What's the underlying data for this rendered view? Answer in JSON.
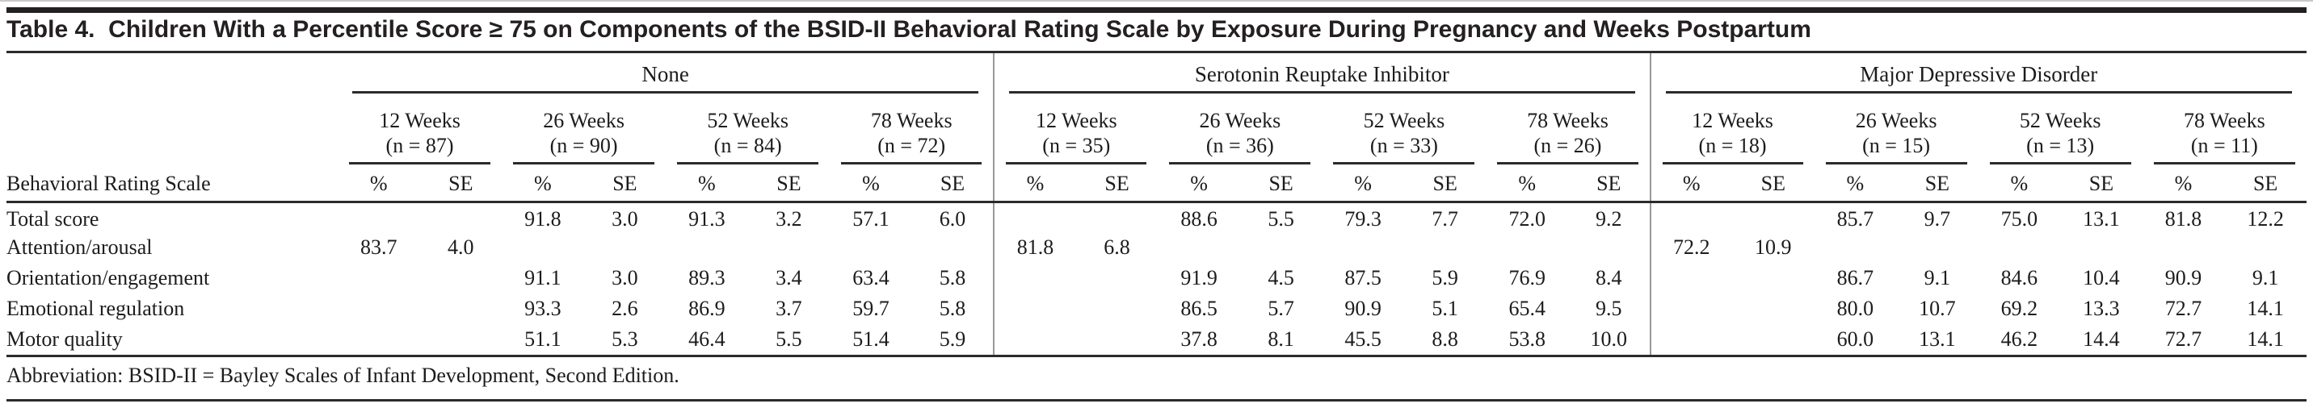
{
  "page": {
    "title": "Table 4.  Children With a Percentile Score ≥ 75 on Components of the BSID-II Behavioral Rating Scale by Exposure During Pregnancy and Weeks Postpartum"
  },
  "table": {
    "row_header": "Behavioral Rating Scale",
    "value_headers": [
      "%",
      "SE"
    ],
    "groups": [
      {
        "name": "None",
        "weeks": [
          {
            "label": "12 Weeks",
            "n": "(n = 87)"
          },
          {
            "label": "26 Weeks",
            "n": "(n = 90)"
          },
          {
            "label": "52 Weeks",
            "n": "(n = 84)"
          },
          {
            "label": "78 Weeks",
            "n": "(n = 72)"
          }
        ]
      },
      {
        "name": "Serotonin Reuptake Inhibitor",
        "weeks": [
          {
            "label": "12 Weeks",
            "n": "(n = 35)"
          },
          {
            "label": "26 Weeks",
            "n": "(n = 36)"
          },
          {
            "label": "52 Weeks",
            "n": "(n = 33)"
          },
          {
            "label": "78 Weeks",
            "n": "(n = 26)"
          }
        ]
      },
      {
        "name": "Major Depressive Disorder",
        "weeks": [
          {
            "label": "12 Weeks",
            "n": "(n = 18)"
          },
          {
            "label": "26 Weeks",
            "n": "(n = 15)"
          },
          {
            "label": "52 Weeks",
            "n": "(n = 13)"
          },
          {
            "label": "78 Weeks",
            "n": "(n = 11)"
          }
        ]
      }
    ],
    "rows": [
      {
        "label": "Total score",
        "groups": [
          [
            "",
            "",
            "91.8",
            "3.0",
            "91.3",
            "3.2",
            "57.1",
            "6.0"
          ],
          [
            "",
            "",
            "88.6",
            "5.5",
            "79.3",
            "7.7",
            "72.0",
            "9.2"
          ],
          [
            "",
            "",
            "85.7",
            "9.7",
            "75.0",
            "13.1",
            "81.8",
            "12.2"
          ]
        ]
      },
      {
        "label": "Attention/arousal",
        "groups": [
          [
            "83.7",
            "4.0",
            "",
            "",
            "",
            "",
            "",
            ""
          ],
          [
            "81.8",
            "6.8",
            "",
            "",
            "",
            "",
            "",
            ""
          ],
          [
            "72.2",
            "10.9",
            "",
            "",
            "",
            "",
            "",
            ""
          ]
        ]
      },
      {
        "label": "Orientation/engagement",
        "groups": [
          [
            "",
            "",
            "91.1",
            "3.0",
            "89.3",
            "3.4",
            "63.4",
            "5.8"
          ],
          [
            "",
            "",
            "91.9",
            "4.5",
            "87.5",
            "5.9",
            "76.9",
            "8.4"
          ],
          [
            "",
            "",
            "86.7",
            "9.1",
            "84.6",
            "10.4",
            "90.9",
            "9.1"
          ]
        ]
      },
      {
        "label": "Emotional regulation",
        "groups": [
          [
            "",
            "",
            "93.3",
            "2.6",
            "86.9",
            "3.7",
            "59.7",
            "5.8"
          ],
          [
            "",
            "",
            "86.5",
            "5.7",
            "90.9",
            "5.1",
            "65.4",
            "9.5"
          ],
          [
            "",
            "",
            "80.0",
            "10.7",
            "69.2",
            "13.3",
            "72.7",
            "14.1"
          ]
        ]
      },
      {
        "label": "Motor quality",
        "groups": [
          [
            "",
            "",
            "51.1",
            "5.3",
            "46.4",
            "5.5",
            "51.4",
            "5.9"
          ],
          [
            "",
            "",
            "37.8",
            "8.1",
            "45.5",
            "8.8",
            "53.8",
            "10.0"
          ],
          [
            "",
            "",
            "60.0",
            "13.1",
            "46.2",
            "14.4",
            "72.7",
            "14.1"
          ]
        ]
      }
    ],
    "footnote": "Abbreviation: BSID-II = Bayley Scales of Infant Development, Second Edition."
  },
  "colors": {
    "text": "#1c1c1c",
    "rule": "#2b2b2b",
    "group_divider": "#999999",
    "top_bar": "#242021",
    "top_hairline": "#c9c9c9",
    "background": "#ffffff"
  }
}
